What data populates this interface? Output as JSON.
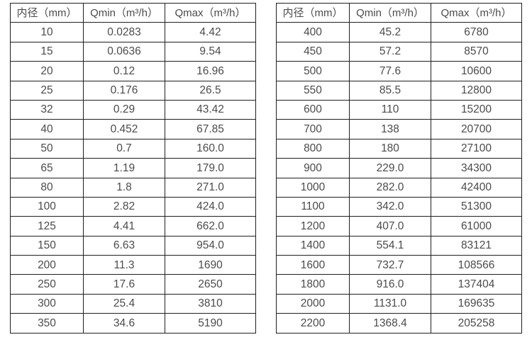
{
  "page": {
    "background_color": "#ffffff",
    "border_color": "#1f1f1f",
    "text_color": "#4b4b4b"
  },
  "tables": [
    {
      "id": "diameter-flow-table-left",
      "headers": [
        "内径（mm）",
        "Qmin（m³/h）",
        "Qmax（m³/h）"
      ],
      "rows": [
        [
          "10",
          "0.0283",
          "4.42"
        ],
        [
          "15",
          "0.0636",
          "9.54"
        ],
        [
          "20",
          "0.12",
          "16.96"
        ],
        [
          "25",
          "0.176",
          "26.5"
        ],
        [
          "32",
          "0.29",
          "43.42"
        ],
        [
          "40",
          "0.452",
          "67.85"
        ],
        [
          "50",
          "0.7",
          "160.0"
        ],
        [
          "65",
          "1.19",
          "179.0"
        ],
        [
          "80",
          "1.8",
          "271.0"
        ],
        [
          "100",
          "2.82",
          "424.0"
        ],
        [
          "125",
          "4.41",
          "662.0"
        ],
        [
          "150",
          "6.63",
          "954.0"
        ],
        [
          "200",
          "11.3",
          "1690"
        ],
        [
          "250",
          "17.6",
          "2650"
        ],
        [
          "300",
          "25.4",
          "3810"
        ],
        [
          "350",
          "34.6",
          "5190"
        ]
      ]
    },
    {
      "id": "diameter-flow-table-right",
      "headers": [
        "内径（mm）",
        "Qmin（m³/h）",
        "Qmax（m³/h）"
      ],
      "rows": [
        [
          "400",
          "45.2",
          "6780"
        ],
        [
          "450",
          "57.2",
          "8570"
        ],
        [
          "500",
          "77.6",
          "10600"
        ],
        [
          "550",
          "85.5",
          "12800"
        ],
        [
          "600",
          "110",
          "15200"
        ],
        [
          "700",
          "138",
          "20700"
        ],
        [
          "800",
          "180",
          "27100"
        ],
        [
          "900",
          "229.0",
          "34300"
        ],
        [
          "1000",
          "282.0",
          "42400"
        ],
        [
          "1100",
          "342.0",
          "51300"
        ],
        [
          "1200",
          "407.0",
          "61000"
        ],
        [
          "1400",
          "554.1",
          "83121"
        ],
        [
          "1600",
          "732.7",
          "108566"
        ],
        [
          "1800",
          "916.0",
          "137404"
        ],
        [
          "2000",
          "1131.0",
          "169635"
        ],
        [
          "2200",
          "1368.4",
          "205258"
        ]
      ]
    }
  ]
}
